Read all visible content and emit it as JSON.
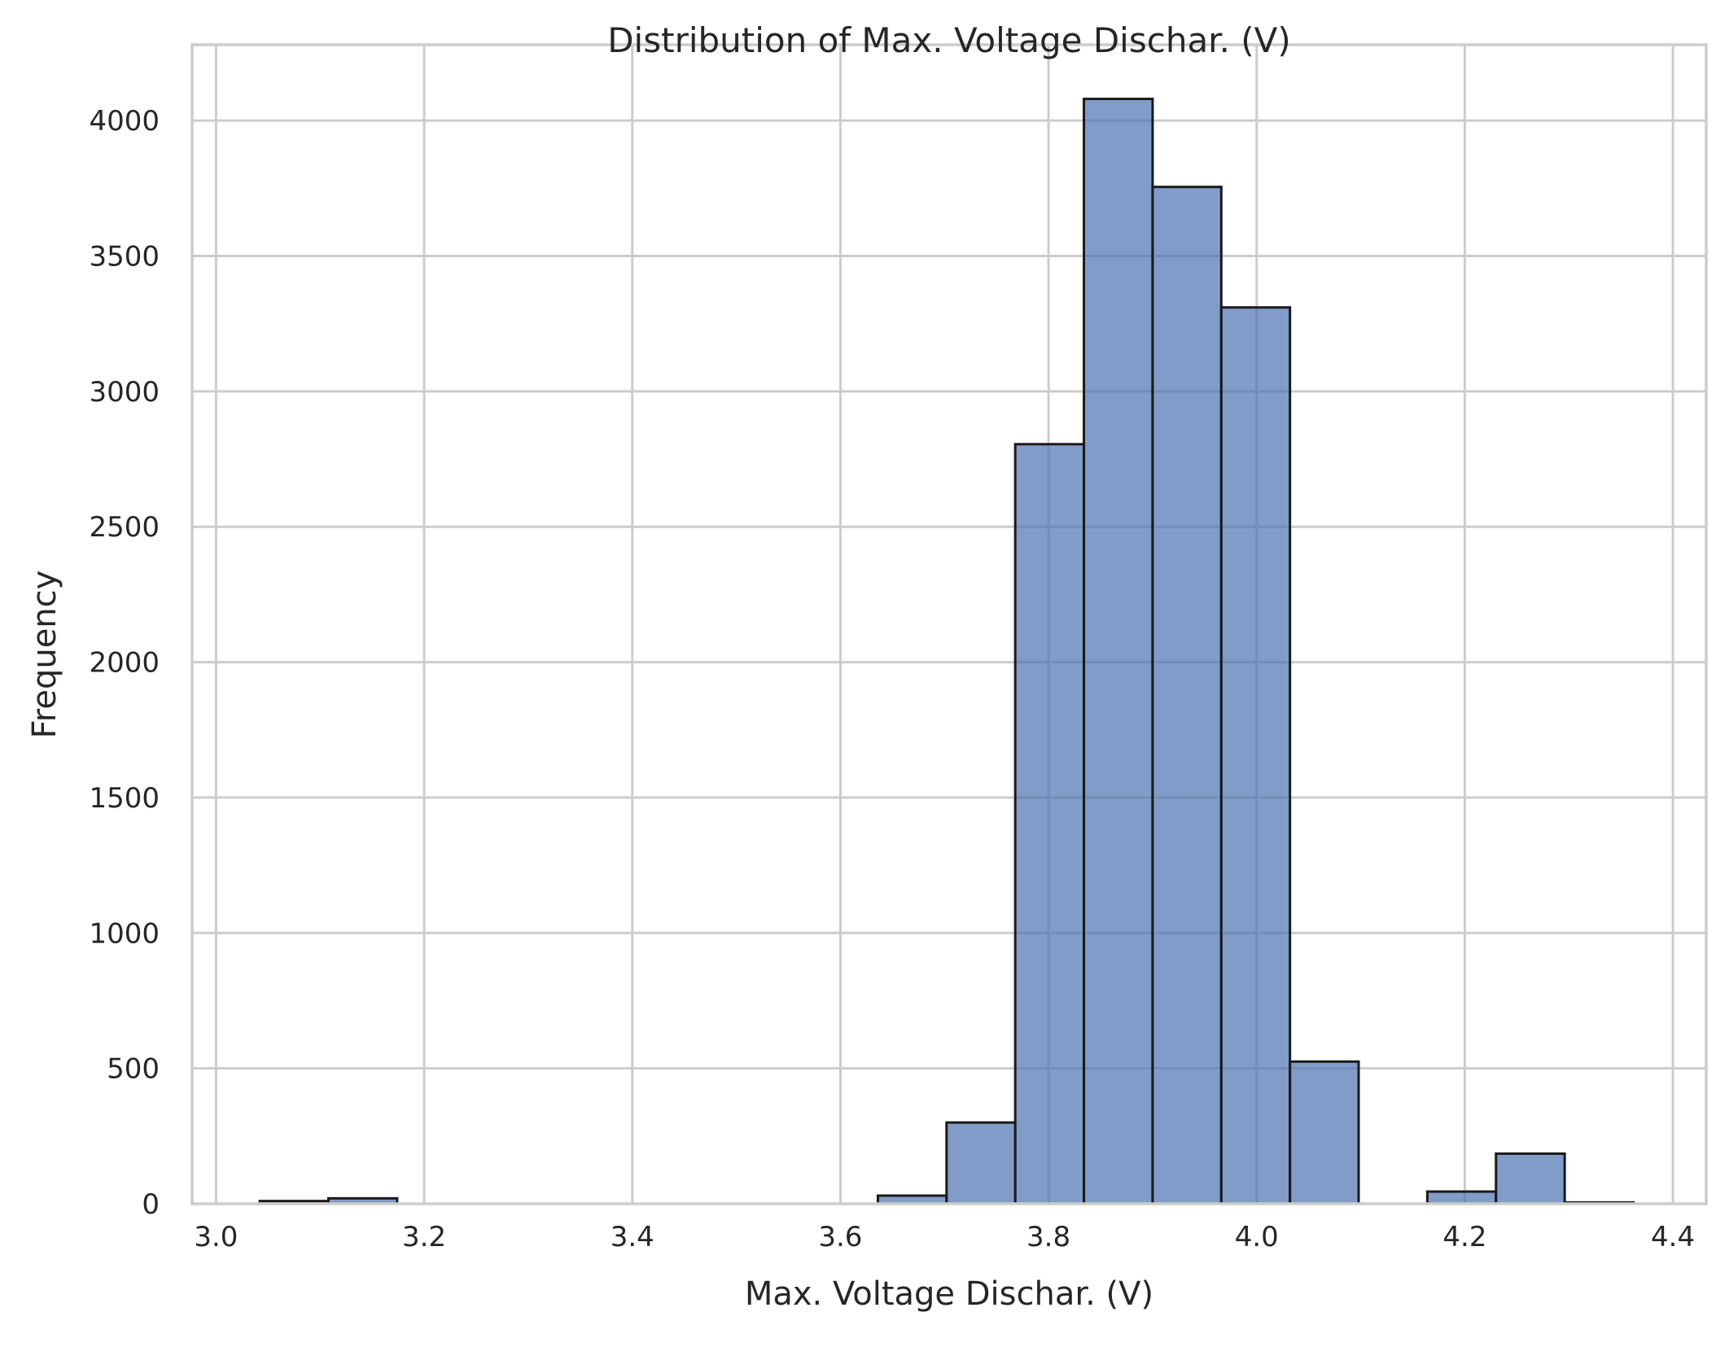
{
  "chart_data": {
    "type": "bar",
    "title": "Distribution of Max. Voltage Dischar. (V)",
    "xlabel": "Max. Voltage Dischar. (V)",
    "ylabel": "Frequency",
    "xlim": [
      2.977,
      4.432
    ],
    "ylim": [
      0,
      4280
    ],
    "xticks": [
      3.0,
      3.2,
      3.4,
      3.6,
      3.8,
      4.0,
      4.2,
      4.4
    ],
    "xtick_labels": [
      "3.0",
      "3.2",
      "3.4",
      "3.6",
      "3.8",
      "4.0",
      "4.2",
      "4.4"
    ],
    "yticks": [
      0,
      500,
      1000,
      1500,
      2000,
      2500,
      3000,
      3500,
      4000
    ],
    "ytick_labels": [
      "0",
      "500",
      "1000",
      "1500",
      "2000",
      "2500",
      "3000",
      "3500",
      "4000"
    ],
    "grid": true,
    "bar_color": "#4c72b0",
    "bar_opacity": 0.7,
    "bins": [
      {
        "x0": 3.042,
        "x1": 3.108,
        "value": 10
      },
      {
        "x0": 3.108,
        "x1": 3.174,
        "value": 20
      },
      {
        "x0": 3.174,
        "x1": 3.24,
        "value": 0
      },
      {
        "x0": 3.24,
        "x1": 3.306,
        "value": 0
      },
      {
        "x0": 3.306,
        "x1": 3.372,
        "value": 0
      },
      {
        "x0": 3.372,
        "x1": 3.438,
        "value": 0
      },
      {
        "x0": 3.438,
        "x1": 3.504,
        "value": 0
      },
      {
        "x0": 3.504,
        "x1": 3.57,
        "value": 0
      },
      {
        "x0": 3.57,
        "x1": 3.636,
        "value": 0
      },
      {
        "x0": 3.636,
        "x1": 3.702,
        "value": 30
      },
      {
        "x0": 3.702,
        "x1": 3.768,
        "value": 300
      },
      {
        "x0": 3.768,
        "x1": 3.834,
        "value": 2805
      },
      {
        "x0": 3.834,
        "x1": 3.9,
        "value": 4080
      },
      {
        "x0": 3.9,
        "x1": 3.966,
        "value": 3755
      },
      {
        "x0": 3.966,
        "x1": 4.032,
        "value": 3310
      },
      {
        "x0": 4.032,
        "x1": 4.098,
        "value": 525
      },
      {
        "x0": 4.098,
        "x1": 4.164,
        "value": 0
      },
      {
        "x0": 4.164,
        "x1": 4.23,
        "value": 45
      },
      {
        "x0": 4.23,
        "x1": 4.296,
        "value": 185
      },
      {
        "x0": 4.296,
        "x1": 4.362,
        "value": 5
      }
    ]
  }
}
